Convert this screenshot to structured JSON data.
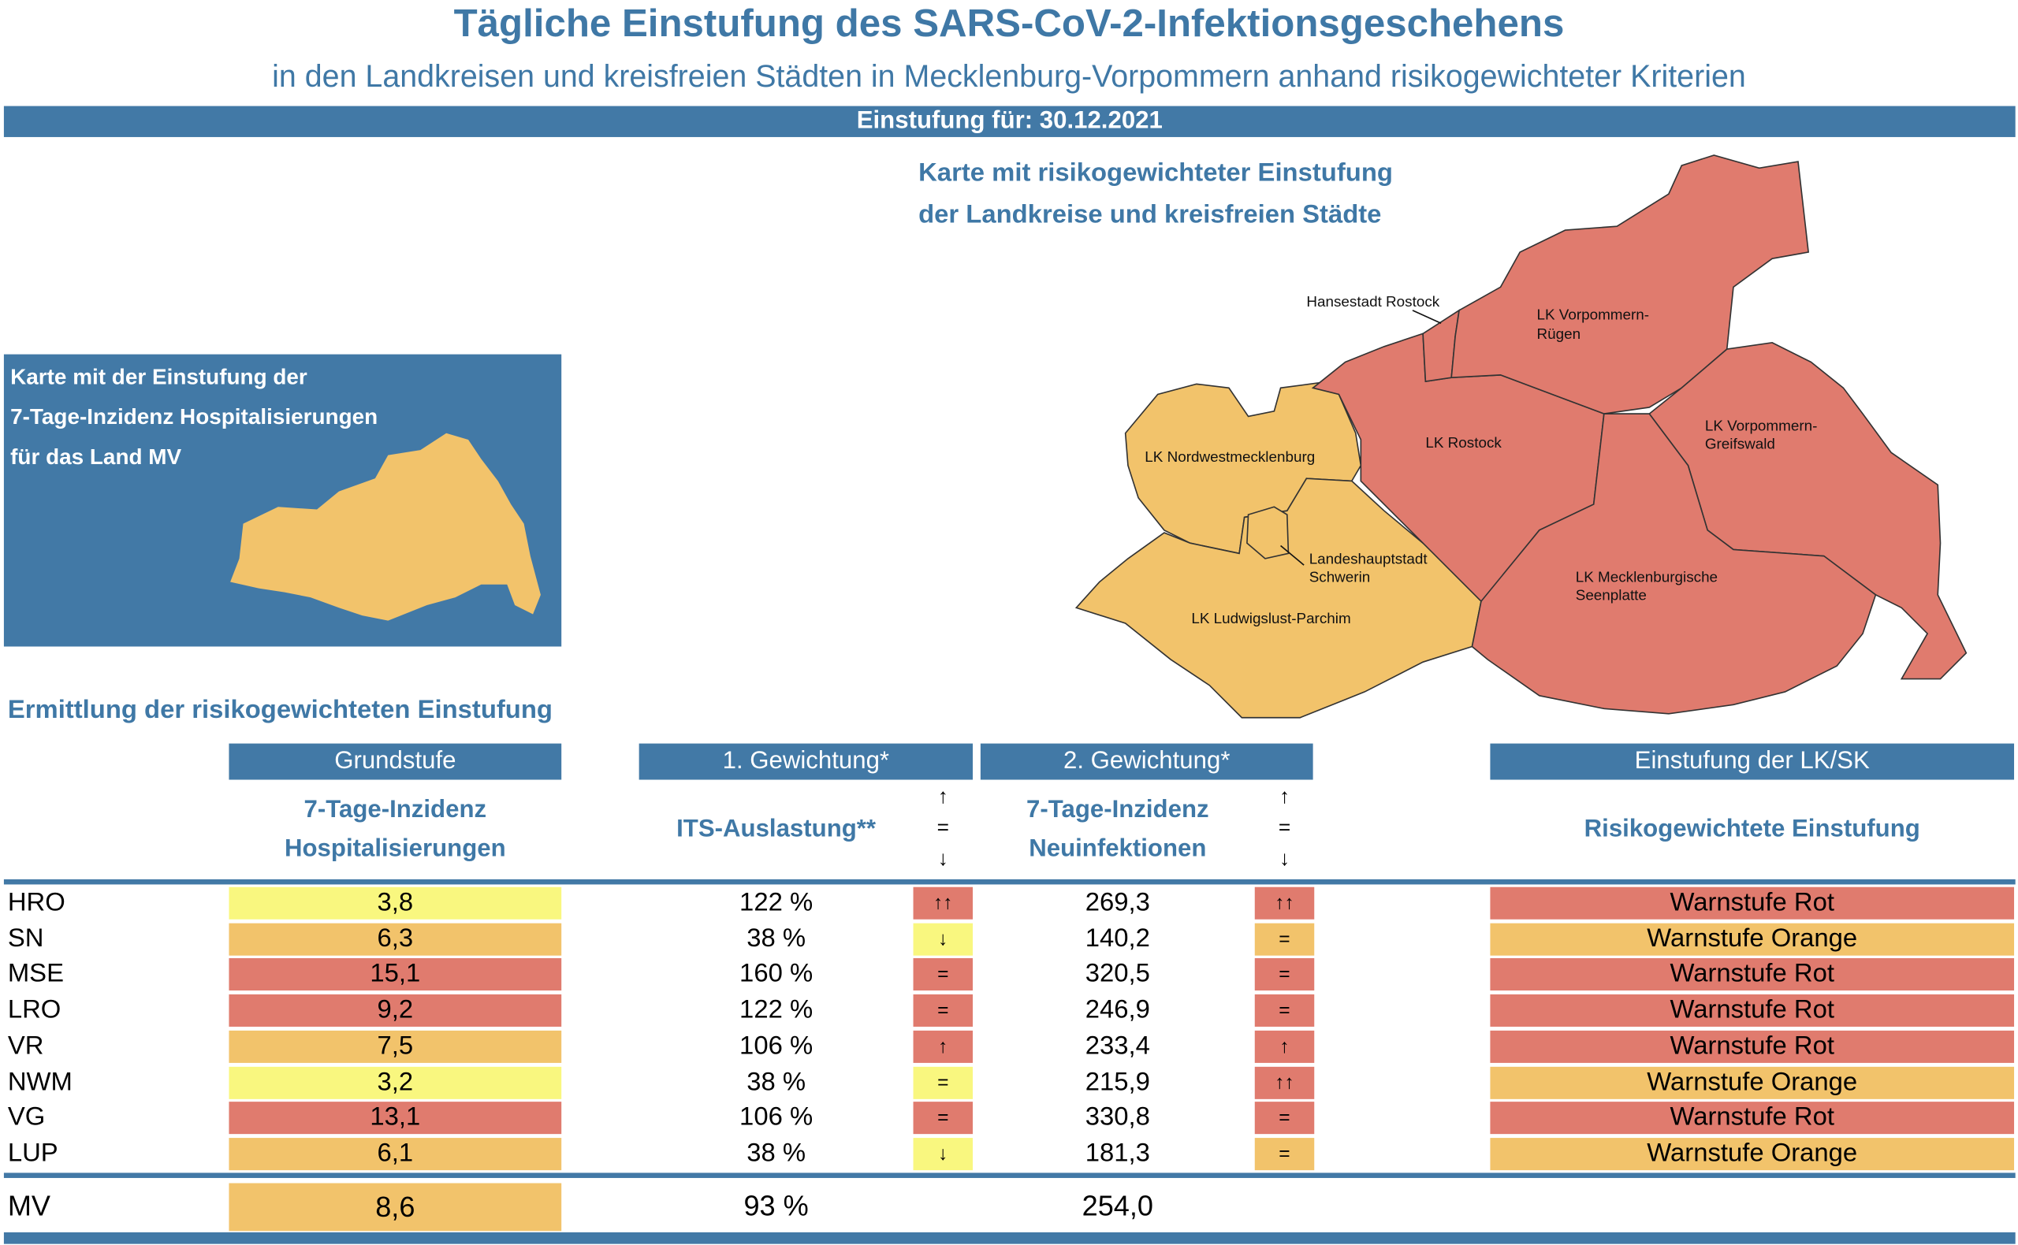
{
  "title": "Tägliche Einstufung des SARS-CoV-2-Infektionsgeschehens",
  "subtitle": "in den Landkreisen und kreisfreien Städten in Mecklenburg-Vorpommern anhand risikogewichteter Kriterien",
  "date_bar": "Einstufung für:  30.12.2021",
  "small_map": {
    "lines": [
      "Karte mit der Einstufung der",
      "7-Tage-Inzidenz Hospitalisierungen",
      "für das Land MV"
    ],
    "color": "#f2c36b"
  },
  "main_map": {
    "title_lines": [
      "Karte mit risikogewichteter Einstufung",
      "der Landkreise und kreisfreien Städte"
    ],
    "regions": [
      {
        "name": "LK Nordwestmecklenburg",
        "level": "Warnstufe Orange"
      },
      {
        "name": "LK Ludwigslust-Parchim",
        "level": "Warnstufe Orange"
      },
      {
        "name": "Landeshauptstadt Schwerin",
        "name_lines": [
          "Landeshauptstadt",
          "Schwerin"
        ],
        "level": "Warnstufe Orange"
      },
      {
        "name": "Hansestadt Rostock",
        "level": "Warnstufe Rot"
      },
      {
        "name": "LK Rostock",
        "level": "Warnstufe Rot"
      },
      {
        "name": "LK Vorpommern-Rügen",
        "name_lines": [
          "LK Vorpommern-",
          "Rügen"
        ],
        "level": "Warnstufe Rot"
      },
      {
        "name": "LK Vorpommern-Greifswald",
        "name_lines": [
          "LK Vorpommern-",
          "Greifswald"
        ],
        "level": "Warnstufe Rot"
      },
      {
        "name": "LK Mecklenburgische Seenplatte",
        "name_lines": [
          "LK Mecklenburgische",
          "Seenplatte"
        ],
        "level": "Warnstufe Rot"
      }
    ]
  },
  "colors": {
    "red": "#e07b6e",
    "orange": "#f2c36b",
    "yellow": "#f9f77f",
    "blue": "#4279a6"
  },
  "section_title": "Ermittlung der risikogewichteten Einstufung",
  "headers": {
    "grundstufe": "Grundstufe",
    "gew1": "1. Gewichtung*",
    "gew2": "2. Gewichtung*",
    "einstufung": "Einstufung der LK/SK",
    "sub_grund": [
      "7-Tage-Inzidenz",
      "Hospitalisierungen"
    ],
    "sub_its": "ITS-Auslastung**",
    "sub_neu": [
      "7-Tage-Inzidenz",
      "Neuinfektionen"
    ],
    "sub_ein": "Risikogewichtete Einstufung",
    "legend_arrows": [
      "↑",
      "=",
      "↓"
    ]
  },
  "rows": [
    {
      "name": "HRO",
      "hosp": "3,8",
      "hosp_color": "yellow",
      "its": "122 %",
      "its_trend": "↑↑",
      "its_color": "red",
      "neu": "269,3",
      "neu_trend": "↑↑",
      "neu_color": "red",
      "level": "Warnstufe Rot",
      "level_color": "red"
    },
    {
      "name": "SN",
      "hosp": "6,3",
      "hosp_color": "orange",
      "its": "38 %",
      "its_trend": "↓",
      "its_color": "yellow",
      "neu": "140,2",
      "neu_trend": "=",
      "neu_color": "orange",
      "level": "Warnstufe Orange",
      "level_color": "orange"
    },
    {
      "name": "MSE",
      "hosp": "15,1",
      "hosp_color": "red",
      "its": "160 %",
      "its_trend": "=",
      "its_color": "red",
      "neu": "320,5",
      "neu_trend": "=",
      "neu_color": "red",
      "level": "Warnstufe Rot",
      "level_color": "red"
    },
    {
      "name": "LRO",
      "hosp": "9,2",
      "hosp_color": "red",
      "its": "122 %",
      "its_trend": "=",
      "its_color": "red",
      "neu": "246,9",
      "neu_trend": "=",
      "neu_color": "red",
      "level": "Warnstufe Rot",
      "level_color": "red"
    },
    {
      "name": "VR",
      "hosp": "7,5",
      "hosp_color": "orange",
      "its": "106 %",
      "its_trend": "↑",
      "its_color": "red",
      "neu": "233,4",
      "neu_trend": "↑",
      "neu_color": "red",
      "level": "Warnstufe Rot",
      "level_color": "red"
    },
    {
      "name": "NWM",
      "hosp": "3,2",
      "hosp_color": "yellow",
      "its": "38 %",
      "its_trend": "=",
      "its_color": "yellow",
      "neu": "215,9",
      "neu_trend": "↑↑",
      "neu_color": "red",
      "level": "Warnstufe Orange",
      "level_color": "orange"
    },
    {
      "name": "VG",
      "hosp": "13,1",
      "hosp_color": "red",
      "its": "106 %",
      "its_trend": "=",
      "its_color": "red",
      "neu": "330,8",
      "neu_trend": "=",
      "neu_color": "red",
      "level": "Warnstufe Rot",
      "level_color": "red"
    },
    {
      "name": "LUP",
      "hosp": "6,1",
      "hosp_color": "orange",
      "its": "38 %",
      "its_trend": "↓",
      "its_color": "yellow",
      "neu": "181,3",
      "neu_trend": "=",
      "neu_color": "orange",
      "level": "Warnstufe Orange",
      "level_color": "orange"
    }
  ],
  "total": {
    "name": "MV",
    "hosp": "8,6",
    "hosp_color": "orange",
    "its": "93 %",
    "neu": "254,0"
  }
}
